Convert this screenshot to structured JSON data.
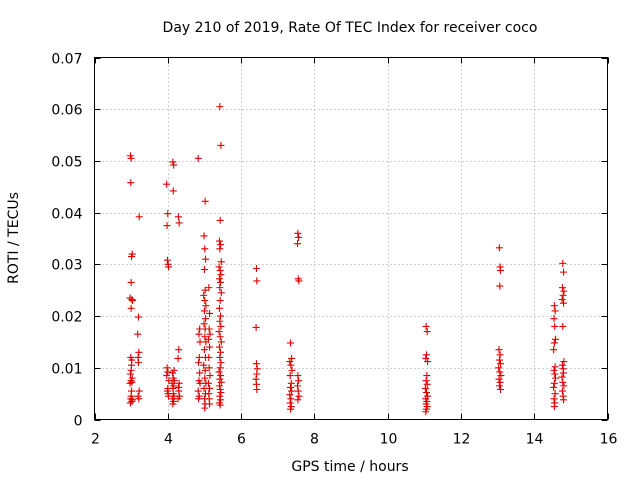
{
  "chart_data": {
    "type": "scatter",
    "title": "Day 210 of 2019, Rate Of TEC Index for receiver coco",
    "xlabel": "GPS time / hours",
    "ylabel": "ROTI / TECUs",
    "xlim": [
      2,
      16
    ],
    "ylim": [
      0,
      0.07
    ],
    "xticks": [
      2,
      4,
      6,
      8,
      10,
      12,
      14,
      16
    ],
    "yticks": [
      0,
      0.01,
      0.02,
      0.03,
      0.04,
      0.05,
      0.06,
      0.07
    ],
    "xtick_labels": [
      "2",
      "4",
      "6",
      "8",
      "10",
      "12",
      "14",
      "16"
    ],
    "ytick_labels": [
      "0",
      "0.01",
      "0.02",
      "0.03",
      "0.04",
      "0.05",
      "0.06",
      "0.07"
    ],
    "grid": true,
    "marker": "plus",
    "color": "#e00000",
    "series": [
      {
        "name": "ROTI",
        "points": [
          [
            2.98,
            0.051
          ],
          [
            3.0,
            0.0505
          ],
          [
            2.99,
            0.0458
          ],
          [
            3.03,
            0.032
          ],
          [
            3.01,
            0.0315
          ],
          [
            3.0,
            0.0265
          ],
          [
            2.97,
            0.0235
          ],
          [
            3.02,
            0.0232
          ],
          [
            3.04,
            0.023
          ],
          [
            3.0,
            0.0215
          ],
          [
            2.99,
            0.012
          ],
          [
            3.02,
            0.0115
          ],
          [
            3.01,
            0.0105
          ],
          [
            3.0,
            0.0095
          ],
          [
            2.98,
            0.0088
          ],
          [
            3.03,
            0.008
          ],
          [
            3.0,
            0.0075
          ],
          [
            3.02,
            0.0072
          ],
          [
            2.97,
            0.007
          ],
          [
            3.01,
            0.0055
          ],
          [
            3.0,
            0.0045
          ],
          [
            2.99,
            0.004
          ],
          [
            3.03,
            0.0038
          ],
          [
            3.02,
            0.0035
          ],
          [
            2.98,
            0.0032
          ],
          [
            3.22,
            0.0392
          ],
          [
            3.2,
            0.0198
          ],
          [
            3.18,
            0.0165
          ],
          [
            3.21,
            0.013
          ],
          [
            3.19,
            0.012
          ],
          [
            3.2,
            0.011
          ],
          [
            3.22,
            0.0055
          ],
          [
            3.19,
            0.0045
          ],
          [
            3.21,
            0.004
          ],
          [
            3.97,
            0.0455
          ],
          [
            4.0,
            0.0398
          ],
          [
            3.98,
            0.0375
          ],
          [
            3.99,
            0.0308
          ],
          [
            4.01,
            0.03
          ],
          [
            4.02,
            0.0295
          ],
          [
            3.98,
            0.01
          ],
          [
            4.0,
            0.0092
          ],
          [
            3.97,
            0.0085
          ],
          [
            4.03,
            0.0075
          ],
          [
            4.0,
            0.006
          ],
          [
            3.99,
            0.0055
          ],
          [
            4.01,
            0.005
          ],
          [
            4.02,
            0.0045
          ],
          [
            4.14,
            0.0498
          ],
          [
            4.16,
            0.0492
          ],
          [
            4.15,
            0.0442
          ],
          [
            4.17,
            0.0095
          ],
          [
            4.13,
            0.009
          ],
          [
            4.15,
            0.008
          ],
          [
            4.18,
            0.0075
          ],
          [
            4.12,
            0.007
          ],
          [
            4.16,
            0.0065
          ],
          [
            4.14,
            0.006
          ],
          [
            4.15,
            0.005
          ],
          [
            4.17,
            0.0045
          ],
          [
            4.13,
            0.004
          ],
          [
            4.16,
            0.0035
          ],
          [
            4.14,
            0.003
          ],
          [
            4.29,
            0.0392
          ],
          [
            4.31,
            0.038
          ],
          [
            4.3,
            0.0135
          ],
          [
            4.28,
            0.0118
          ],
          [
            4.31,
            0.007
          ],
          [
            4.29,
            0.0062
          ],
          [
            4.3,
            0.0055
          ],
          [
            4.32,
            0.0045
          ],
          [
            4.28,
            0.004
          ],
          [
            4.83,
            0.0505
          ],
          [
            4.87,
            0.0175
          ],
          [
            4.85,
            0.0165
          ],
          [
            4.88,
            0.015
          ],
          [
            4.86,
            0.012
          ],
          [
            4.84,
            0.011
          ],
          [
            4.87,
            0.009
          ],
          [
            4.85,
            0.0075
          ],
          [
            4.88,
            0.007
          ],
          [
            4.83,
            0.0055
          ],
          [
            4.86,
            0.0045
          ],
          [
            4.84,
            0.004
          ],
          [
            5.02,
            0.0422
          ],
          [
            4.99,
            0.0355
          ],
          [
            5.01,
            0.033
          ],
          [
            5.03,
            0.031
          ],
          [
            5.0,
            0.029
          ],
          [
            5.02,
            0.025
          ],
          [
            4.98,
            0.024
          ],
          [
            5.01,
            0.023
          ],
          [
            5.04,
            0.022
          ],
          [
            5.0,
            0.021
          ],
          [
            5.03,
            0.0195
          ],
          [
            4.99,
            0.0185
          ],
          [
            5.02,
            0.0175
          ],
          [
            5.01,
            0.016
          ],
          [
            5.04,
            0.015
          ],
          [
            5.0,
            0.0135
          ],
          [
            5.03,
            0.012
          ],
          [
            4.98,
            0.0105
          ],
          [
            5.02,
            0.0095
          ],
          [
            5.01,
            0.008
          ],
          [
            5.04,
            0.007
          ],
          [
            4.99,
            0.006
          ],
          [
            5.03,
            0.005
          ],
          [
            5.0,
            0.004
          ],
          [
            5.02,
            0.003
          ],
          [
            5.01,
            0.0022
          ],
          [
            5.12,
            0.0255
          ],
          [
            5.14,
            0.0205
          ],
          [
            5.13,
            0.0175
          ],
          [
            5.15,
            0.0165
          ],
          [
            5.11,
            0.0155
          ],
          [
            5.14,
            0.014
          ],
          [
            5.12,
            0.012
          ],
          [
            5.13,
            0.01
          ],
          [
            5.15,
            0.0085
          ],
          [
            5.11,
            0.007
          ],
          [
            5.14,
            0.006
          ],
          [
            5.12,
            0.005
          ],
          [
            5.13,
            0.004
          ],
          [
            5.14,
            0.003
          ],
          [
            5.42,
            0.0605
          ],
          [
            5.45,
            0.053
          ],
          [
            5.43,
            0.0385
          ],
          [
            5.41,
            0.0345
          ],
          [
            5.44,
            0.0338
          ],
          [
            5.42,
            0.033
          ],
          [
            5.46,
            0.0305
          ],
          [
            5.4,
            0.0295
          ],
          [
            5.43,
            0.0288
          ],
          [
            5.45,
            0.028
          ],
          [
            5.41,
            0.0272
          ],
          [
            5.44,
            0.0265
          ],
          [
            5.42,
            0.0255
          ],
          [
            5.46,
            0.0245
          ],
          [
            5.43,
            0.023
          ],
          [
            5.41,
            0.0215
          ],
          [
            5.44,
            0.02
          ],
          [
            5.42,
            0.019
          ],
          [
            5.45,
            0.018
          ],
          [
            5.4,
            0.017
          ],
          [
            5.43,
            0.016
          ],
          [
            5.46,
            0.015
          ],
          [
            5.41,
            0.014
          ],
          [
            5.44,
            0.013
          ],
          [
            5.42,
            0.012
          ],
          [
            5.45,
            0.011
          ],
          [
            5.43,
            0.01
          ],
          [
            5.4,
            0.0092
          ],
          [
            5.44,
            0.0085
          ],
          [
            5.42,
            0.0078
          ],
          [
            5.46,
            0.0072
          ],
          [
            5.41,
            0.0065
          ],
          [
            5.43,
            0.0058
          ],
          [
            5.45,
            0.0052
          ],
          [
            5.42,
            0.0045
          ],
          [
            5.44,
            0.0038
          ],
          [
            5.41,
            0.0032
          ],
          [
            5.43,
            0.0028
          ],
          [
            6.42,
            0.0292
          ],
          [
            6.43,
            0.0268
          ],
          [
            6.41,
            0.0178
          ],
          [
            6.42,
            0.0108
          ],
          [
            6.44,
            0.0098
          ],
          [
            6.43,
            0.0088
          ],
          [
            6.41,
            0.0078
          ],
          [
            6.42,
            0.0068
          ],
          [
            6.43,
            0.0058
          ],
          [
            7.35,
            0.0148
          ],
          [
            7.38,
            0.0118
          ],
          [
            7.33,
            0.0112
          ],
          [
            7.36,
            0.0105
          ],
          [
            7.39,
            0.0095
          ],
          [
            7.34,
            0.0085
          ],
          [
            7.37,
            0.007
          ],
          [
            7.35,
            0.0062
          ],
          [
            7.38,
            0.0055
          ],
          [
            7.33,
            0.0048
          ],
          [
            7.36,
            0.004
          ],
          [
            7.34,
            0.0032
          ],
          [
            7.37,
            0.0025
          ],
          [
            7.35,
            0.002
          ],
          [
            7.55,
            0.036
          ],
          [
            7.57,
            0.0352
          ],
          [
            7.54,
            0.034
          ],
          [
            7.56,
            0.0272
          ],
          [
            7.58,
            0.0268
          ],
          [
            7.55,
            0.0085
          ],
          [
            7.57,
            0.0075
          ],
          [
            7.54,
            0.0065
          ],
          [
            7.56,
            0.0055
          ],
          [
            7.58,
            0.0045
          ],
          [
            7.55,
            0.0038
          ],
          [
            11.05,
            0.018
          ],
          [
            11.08,
            0.017
          ],
          [
            11.06,
            0.0125
          ],
          [
            11.04,
            0.0118
          ],
          [
            11.09,
            0.0112
          ],
          [
            11.07,
            0.0085
          ],
          [
            11.05,
            0.0075
          ],
          [
            11.08,
            0.0068
          ],
          [
            11.03,
            0.006
          ],
          [
            11.06,
            0.0052
          ],
          [
            11.09,
            0.0045
          ],
          [
            11.04,
            0.004
          ],
          [
            11.07,
            0.0035
          ],
          [
            11.05,
            0.003
          ],
          [
            11.08,
            0.0025
          ],
          [
            11.06,
            0.002
          ],
          [
            11.04,
            0.0015
          ],
          [
            13.05,
            0.0332
          ],
          [
            13.07,
            0.0295
          ],
          [
            13.08,
            0.0288
          ],
          [
            13.06,
            0.0258
          ],
          [
            13.04,
            0.0135
          ],
          [
            13.07,
            0.0125
          ],
          [
            13.05,
            0.0115
          ],
          [
            13.08,
            0.0108
          ],
          [
            13.03,
            0.01
          ],
          [
            13.06,
            0.0092
          ],
          [
            13.09,
            0.0085
          ],
          [
            13.04,
            0.0078
          ],
          [
            13.07,
            0.0072
          ],
          [
            13.05,
            0.0065
          ],
          [
            13.08,
            0.0058
          ],
          [
            14.55,
            0.022
          ],
          [
            14.57,
            0.021
          ],
          [
            14.54,
            0.0195
          ],
          [
            14.56,
            0.018
          ],
          [
            14.58,
            0.0155
          ],
          [
            14.55,
            0.0148
          ],
          [
            14.53,
            0.0135
          ],
          [
            14.57,
            0.0102
          ],
          [
            14.54,
            0.0095
          ],
          [
            14.56,
            0.0088
          ],
          [
            14.58,
            0.008
          ],
          [
            14.55,
            0.007
          ],
          [
            14.53,
            0.0062
          ],
          [
            14.57,
            0.005
          ],
          [
            14.54,
            0.004
          ],
          [
            14.56,
            0.0032
          ],
          [
            14.55,
            0.0025
          ],
          [
            14.78,
            0.0302
          ],
          [
            14.8,
            0.0285
          ],
          [
            14.77,
            0.0255
          ],
          [
            14.81,
            0.0248
          ],
          [
            14.79,
            0.024
          ],
          [
            14.76,
            0.0232
          ],
          [
            14.8,
            0.0225
          ],
          [
            14.78,
            0.018
          ],
          [
            14.81,
            0.0112
          ],
          [
            14.77,
            0.0105
          ],
          [
            14.79,
            0.0098
          ],
          [
            14.8,
            0.009
          ],
          [
            14.76,
            0.0082
          ],
          [
            14.78,
            0.0072
          ],
          [
            14.81,
            0.0065
          ],
          [
            14.77,
            0.0055
          ],
          [
            14.79,
            0.0045
          ],
          [
            14.8,
            0.0038
          ]
        ]
      }
    ]
  }
}
